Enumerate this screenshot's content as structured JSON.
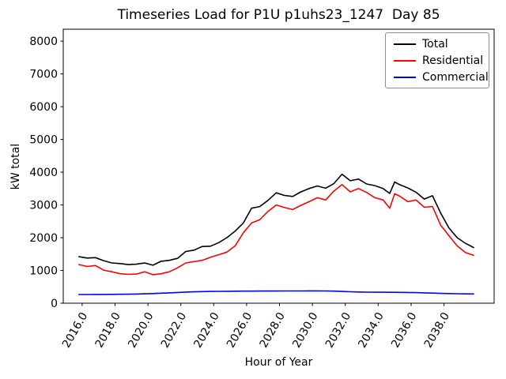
{
  "legend": {
    "position": "upper right",
    "entries": [
      {
        "label": "Total",
        "color": "#000000"
      },
      {
        "label": "Residential",
        "color": "#ff0000"
      },
      {
        "label": "Commercial",
        "color": "#0000ff"
      }
    ]
  },
  "chart_data": {
    "type": "line",
    "title": "Timeseries Load for P1U p1uhs23_1247  Day 85",
    "xlabel": "Hour of Year",
    "ylabel": "kW total",
    "grid": false,
    "legend_position": "upper right",
    "xlim": [
      2014.85,
      2041.05
    ],
    "ylim": [
      0,
      8365
    ],
    "x_tick_labels": [
      "2016.0",
      "2018.0",
      "2020.0",
      "2022.0",
      "2024.0",
      "2026.0",
      "2028.0",
      "2030.0",
      "2032.0",
      "2034.0",
      "2036.0",
      "2038.0"
    ],
    "y_tick_labels": [
      "0",
      "1000",
      "2000",
      "3000",
      "4000",
      "5000",
      "6000",
      "7000",
      "8000"
    ],
    "x": [
      2015.8,
      2016.3,
      2016.8,
      2017.3,
      2017.8,
      2018.3,
      2018.8,
      2019.3,
      2019.8,
      2020.3,
      2020.8,
      2021.3,
      2021.8,
      2022.3,
      2022.8,
      2023.3,
      2023.8,
      2024.3,
      2024.8,
      2025.3,
      2025.8,
      2026.3,
      2026.8,
      2027.3,
      2027.8,
      2028.3,
      2028.8,
      2029.3,
      2029.8,
      2030.3,
      2030.8,
      2031.3,
      2031.8,
      2032.3,
      2032.8,
      2033.3,
      2033.8,
      2034.3,
      2034.7,
      2035.0,
      2035.3,
      2035.8,
      2036.3,
      2036.8,
      2037.3,
      2037.8,
      2038.3,
      2038.8,
      2039.3,
      2039.8
    ],
    "series": [
      {
        "name": "Total",
        "color": "#000000",
        "values": [
          1420,
          1380,
          1390,
          1300,
          1230,
          1210,
          1180,
          1190,
          1230,
          1160,
          1280,
          1310,
          1370,
          1580,
          1620,
          1730,
          1740,
          1850,
          2000,
          2200,
          2450,
          2900,
          2950,
          3140,
          3370,
          3290,
          3260,
          3400,
          3500,
          3580,
          3510,
          3650,
          3940,
          3740,
          3790,
          3640,
          3590,
          3500,
          3350,
          3700,
          3620,
          3520,
          3390,
          3180,
          3280,
          2750,
          2300,
          2000,
          1830,
          1700
        ]
      },
      {
        "name": "Residential",
        "color": "#ff0000",
        "values": [
          1180,
          1120,
          1150,
          1010,
          960,
          900,
          880,
          890,
          960,
          870,
          900,
          960,
          1080,
          1230,
          1270,
          1310,
          1400,
          1480,
          1560,
          1750,
          2150,
          2450,
          2550,
          2800,
          3000,
          2920,
          2860,
          2990,
          3100,
          3220,
          3150,
          3420,
          3620,
          3400,
          3500,
          3380,
          3220,
          3150,
          2900,
          3340,
          3270,
          3100,
          3150,
          2930,
          2950,
          2380,
          2060,
          1750,
          1550,
          1460
        ]
      },
      {
        "name": "Commercial",
        "color": "#0000ff",
        "values": [
          265,
          265,
          267,
          268,
          270,
          272,
          275,
          280,
          286,
          294,
          305,
          316,
          328,
          340,
          348,
          354,
          358,
          362,
          365,
          367,
          369,
          370,
          371,
          372,
          372,
          373,
          373,
          374,
          375,
          375,
          373,
          368,
          360,
          350,
          342,
          338,
          336,
          334,
          333,
          332,
          331,
          328,
          322,
          315,
          308,
          300,
          294,
          289,
          285,
          282
        ]
      }
    ]
  }
}
